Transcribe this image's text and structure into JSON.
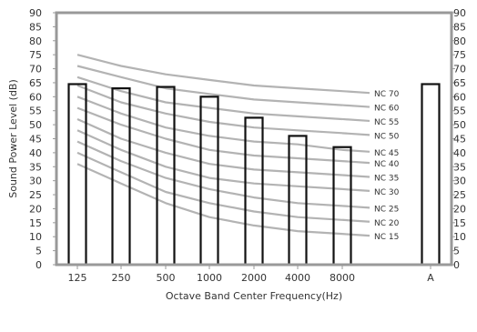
{
  "chart_data": {
    "type": "bar",
    "xlabel": "Octave Band Center Frequency(Hz)",
    "ylabel": "Sound Power Level (dB)",
    "ylim": [
      0,
      90
    ],
    "yticks": [
      0,
      5,
      10,
      15,
      20,
      25,
      30,
      35,
      40,
      45,
      50,
      55,
      60,
      65,
      70,
      75,
      80,
      85,
      90
    ],
    "categories": [
      "125",
      "250",
      "500",
      "1000",
      "2000",
      "4000",
      "8000",
      "A"
    ],
    "values": [
      64.5,
      63,
      63.5,
      60,
      52.5,
      46,
      42,
      64.5
    ],
    "grid": false,
    "nc_curves": [
      {
        "name": "NC 70",
        "values": [
          75,
          71,
          68,
          66,
          64,
          63,
          62
        ]
      },
      {
        "name": "NC 60",
        "values": [
          71,
          67,
          63,
          61,
          59,
          58,
          57
        ]
      },
      {
        "name": "NC 55",
        "values": [
          67,
          62,
          58,
          56,
          54,
          53,
          52
        ]
      },
      {
        "name": "NC 50",
        "values": [
          64,
          58,
          54,
          51,
          49,
          48,
          47
        ]
      },
      {
        "name": "NC 45",
        "values": [
          60,
          54,
          49,
          46,
          44,
          43,
          41
        ]
      },
      {
        "name": "NC 40",
        "values": [
          56,
          50,
          45,
          41,
          39,
          38,
          37
        ]
      },
      {
        "name": "NC 35",
        "values": [
          52,
          45,
          40,
          36,
          34,
          33,
          32
        ]
      },
      {
        "name": "NC 30",
        "values": [
          48,
          41,
          35,
          31,
          29,
          28,
          27
        ]
      },
      {
        "name": "NC 25",
        "values": [
          44,
          37,
          31,
          27,
          24,
          22,
          21
        ]
      },
      {
        "name": "NC 20",
        "values": [
          40,
          33,
          26,
          22,
          19,
          17,
          16
        ]
      },
      {
        "name": "NC 15",
        "values": [
          36,
          29,
          22,
          17,
          14,
          12,
          11
        ]
      }
    ]
  }
}
